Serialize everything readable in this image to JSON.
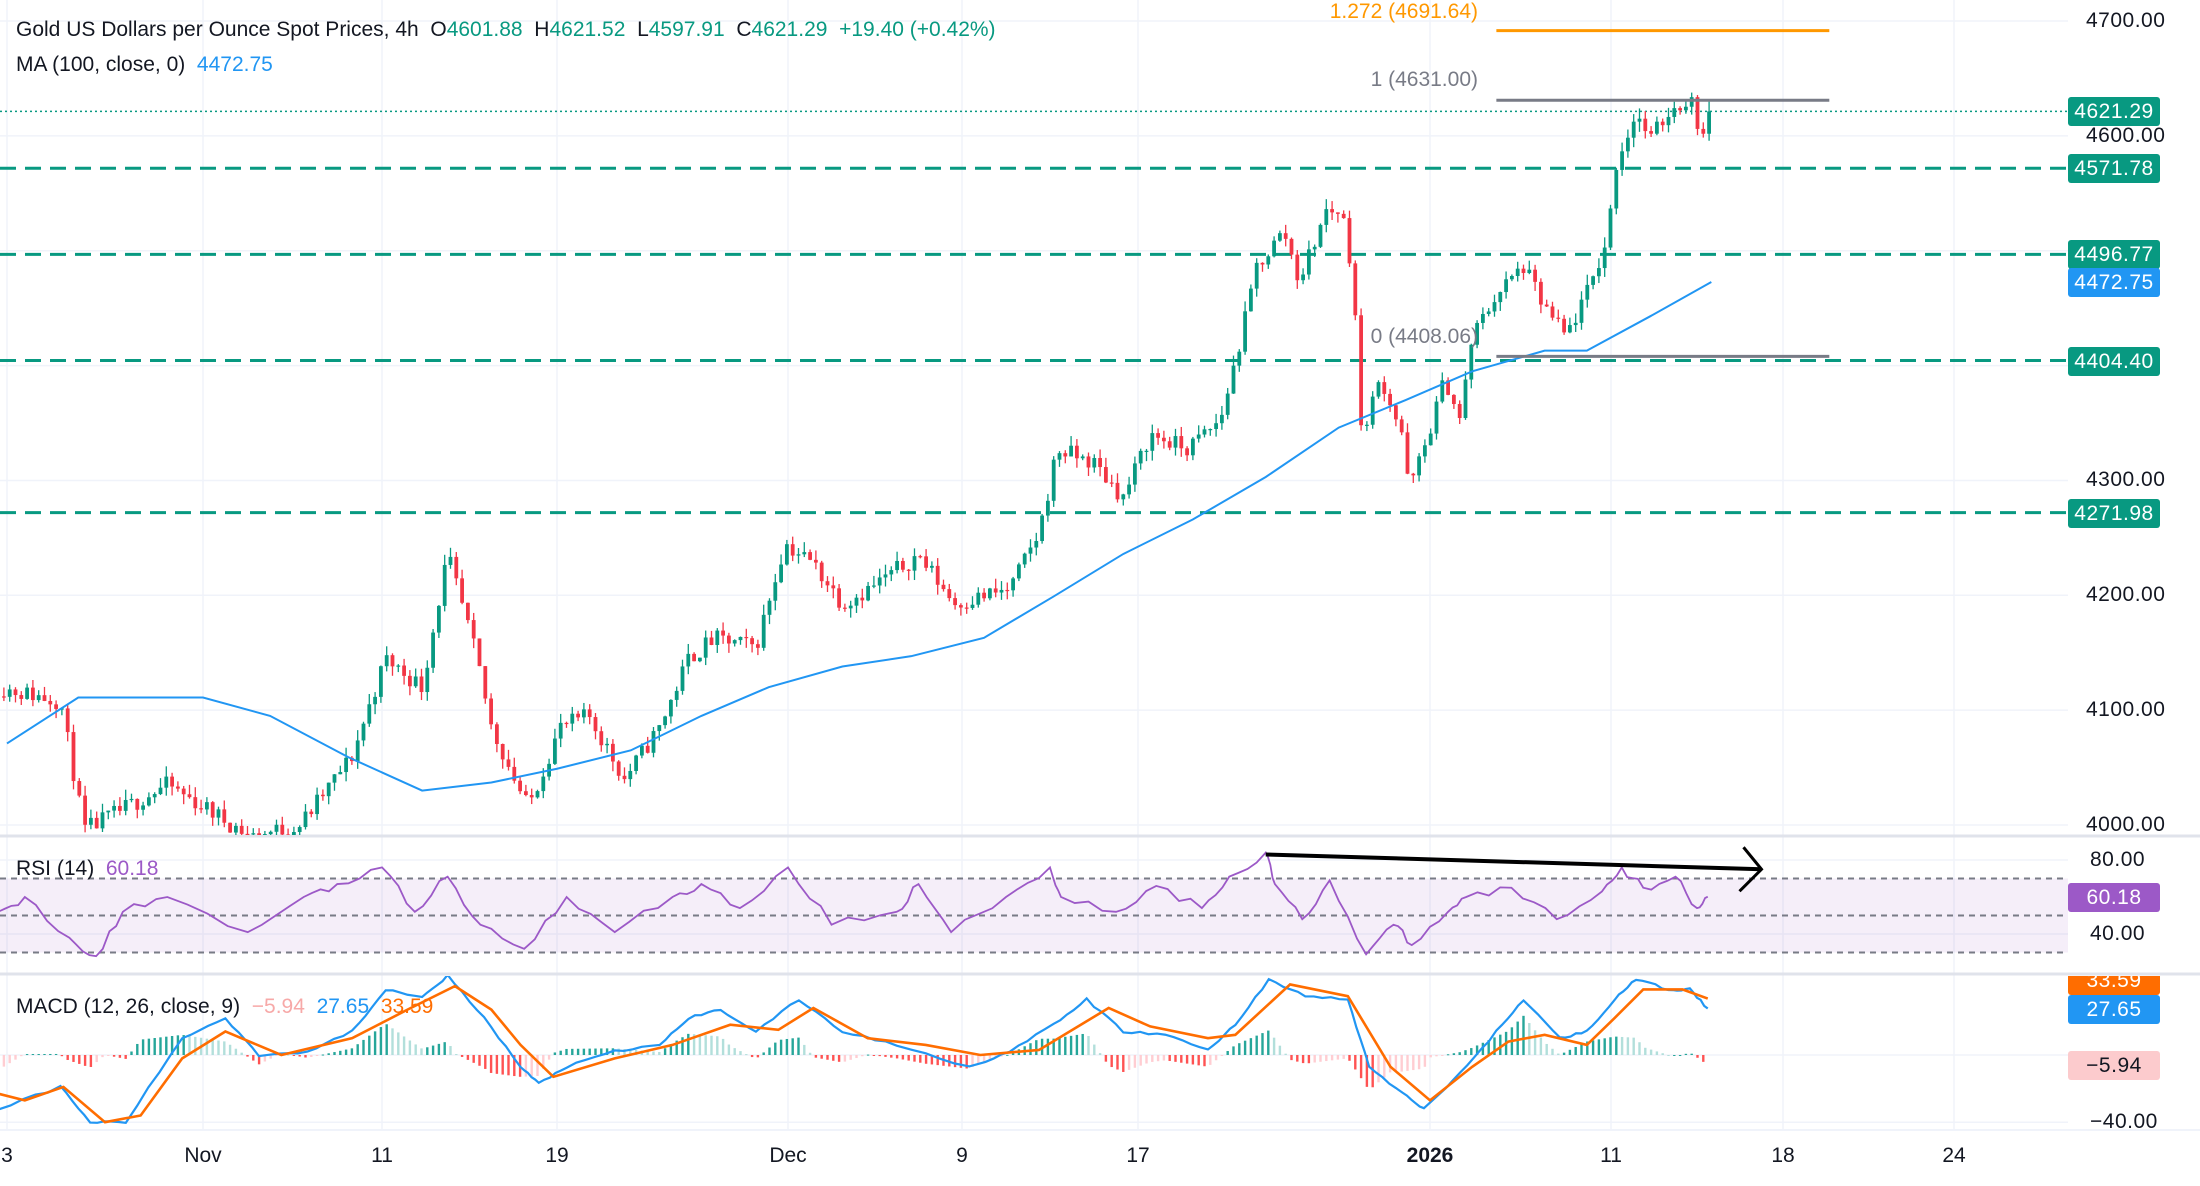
{
  "header": {
    "title": "Gold US Dollars per Ounce Spot Prices, 4h",
    "o_label": "O",
    "open": "4601.88",
    "h_label": "H",
    "high": "4621.52",
    "l_label": "L",
    "low": "4597.91",
    "c_label": "C",
    "close": "4621.29",
    "change": "+19.40 (+0.42%)"
  },
  "ma_legend": {
    "label": "MA (100, close, 0)",
    "value": "4472.75"
  },
  "rsi_legend": {
    "label": "RSI (14)",
    "value": "60.18"
  },
  "macd_legend": {
    "label": "MACD (12, 26, close, 9)",
    "histogram": "−5.94",
    "macd": "27.65",
    "signal": "33.59"
  },
  "fib_labels": {
    "f1272": "1.272 (4691.64)",
    "f1": "1 (4631.00)",
    "f0": "0 (4408.06)"
  },
  "colors": {
    "up": "#089981",
    "down": "#f23645",
    "ma": "#2196f3",
    "rsi": "#9c59c7",
    "macd": "#2196f3",
    "signal": "#ff6d00",
    "fib_ext": "#ff9800",
    "fib": "#787b86",
    "level": "#089981"
  },
  "chart_data": [
    {
      "type": "candlestick",
      "title": "Gold US Dollars per Ounce Spot Prices, 4h",
      "ylim": [
        4000,
        4700
      ],
      "y_ticks": [
        "4700.00",
        "4600.00",
        "4300.00",
        "4200.00",
        "4100.00",
        "4000.00"
      ],
      "x_ticks": [
        {
          "label": "3",
          "date": "2025-10-23"
        },
        {
          "label": "Nov",
          "date": "2025-11-03"
        },
        {
          "label": "11",
          "date": "2025-11-11"
        },
        {
          "label": "19",
          "date": "2025-11-19"
        },
        {
          "label": "Dec",
          "date": "2025-12-01"
        },
        {
          "label": "9",
          "date": "2025-12-09"
        },
        {
          "label": "17",
          "date": "2025-12-17"
        },
        {
          "label": "2026",
          "date": "2026-01-02"
        },
        {
          "label": "11",
          "date": "2026-01-12"
        },
        {
          "label": "18",
          "date": "2026-01-20"
        },
        {
          "label": "24",
          "date": "2026-01-28"
        }
      ],
      "last_price": 4621.29,
      "horizontal_levels": [
        4571.78,
        4496.77,
        4404.4,
        4271.98
      ],
      "axis_labels": [
        {
          "value": 4621.29,
          "text": "4621.29",
          "color": "#089981"
        },
        {
          "value": 4571.78,
          "text": "4571.78",
          "color": "#089981"
        },
        {
          "value": 4496.77,
          "text": "4496.77",
          "color": "#089981"
        },
        {
          "value": 4472.75,
          "text": "4472.75",
          "color": "#2196f3"
        },
        {
          "value": 4404.4,
          "text": "4404.40",
          "color": "#089981"
        },
        {
          "value": 4271.98,
          "text": "4271.98",
          "color": "#089981"
        }
      ],
      "fibonacci": {
        "start": "2026-01-05T16",
        "end": "2026-01-22T04",
        "levels": [
          {
            "ratio": 1.272,
            "price": 4691.64
          },
          {
            "ratio": 1,
            "price": 4631.0
          },
          {
            "ratio": 0,
            "price": 4408.06
          }
        ]
      },
      "price_path": [
        [
          "2025-10-22T12",
          4120
        ],
        [
          "2025-10-26T00",
          4108
        ],
        [
          "2025-10-27T08",
          3995
        ],
        [
          "2025-11-01T00",
          4035
        ],
        [
          "2025-11-05T04",
          3990
        ],
        [
          "2025-11-07T08",
          4000
        ],
        [
          "2025-11-09T16",
          4060
        ],
        [
          "2025-11-11T04",
          4145
        ],
        [
          "2025-11-12T20",
          4120
        ],
        [
          "2025-11-14T00",
          4235
        ],
        [
          "2025-11-15T08",
          4145
        ],
        [
          "2025-11-16T00",
          4085
        ],
        [
          "2025-11-17T16",
          4015
        ],
        [
          "2025-11-19T04",
          4085
        ],
        [
          "2025-11-20T16",
          4095
        ],
        [
          "2025-11-22T12",
          4040
        ],
        [
          "2025-11-24T08",
          4085
        ],
        [
          "2025-11-25T20",
          4145
        ],
        [
          "2025-11-27T04",
          4162
        ],
        [
          "2025-11-29T08",
          4155
        ],
        [
          "2025-11-30T20",
          4245
        ],
        [
          "2025-12-02T04",
          4228
        ],
        [
          "2025-12-03T12",
          4193
        ],
        [
          "2025-12-04T16",
          4205
        ],
        [
          "2025-12-07T00",
          4235
        ],
        [
          "2025-12-08T16",
          4193
        ],
        [
          "2025-12-11T04",
          4205
        ],
        [
          "2025-12-12T12",
          4254
        ],
        [
          "2025-12-13T08",
          4327
        ],
        [
          "2025-12-15T00",
          4315
        ],
        [
          "2025-12-16T08",
          4285
        ],
        [
          "2025-12-17T16",
          4340
        ],
        [
          "2025-12-19T16",
          4327
        ],
        [
          "2025-12-21T12",
          4352
        ],
        [
          "2025-12-22T16",
          4425
        ],
        [
          "2025-12-23T12",
          4486
        ],
        [
          "2025-12-25T00",
          4517
        ],
        [
          "2025-12-25T20",
          4474
        ],
        [
          "2025-12-27T08",
          4535
        ],
        [
          "2025-12-28T04",
          4535
        ],
        [
          "2025-12-28T20",
          4474
        ],
        [
          "2025-12-29T04",
          4340
        ],
        [
          "2025-12-30T08",
          4389
        ],
        [
          "2025-12-31T12",
          4340
        ],
        [
          "2025-12-31T20",
          4291
        ],
        [
          "2026-01-01T16",
          4327
        ],
        [
          "2026-01-02T20",
          4389
        ],
        [
          "2026-01-03T16",
          4352
        ],
        [
          "2026-01-04T08",
          4425
        ],
        [
          "2026-01-05T16",
          4462
        ],
        [
          "2026-01-07T04",
          4486
        ],
        [
          "2026-01-08T08",
          4450
        ],
        [
          "2026-01-09T12",
          4425
        ],
        [
          "2026-01-10T16",
          4462
        ],
        [
          "2026-01-11T20",
          4511
        ],
        [
          "2026-01-12T04",
          4572
        ],
        [
          "2026-01-13T04",
          4621
        ],
        [
          "2026-01-13T20",
          4596
        ],
        [
          "2026-01-14T16",
          4621
        ],
        [
          "2026-01-15T16",
          4633
        ],
        [
          "2026-01-16T08",
          4596
        ],
        [
          "2026-01-16T16",
          4621.29
        ]
      ],
      "ma_path": [
        [
          "2025-10-23T00",
          4071
        ],
        [
          "2025-10-27T00",
          4111
        ],
        [
          "2025-11-03T00",
          4111
        ],
        [
          "2025-11-06T00",
          4095
        ],
        [
          "2025-11-09T12",
          4059
        ],
        [
          "2025-11-12T20",
          4030
        ],
        [
          "2025-11-16T00",
          4037
        ],
        [
          "2025-11-19T00",
          4049
        ],
        [
          "2025-11-22T20",
          4065
        ],
        [
          "2025-11-26T12",
          4095
        ],
        [
          "2025-11-30T00",
          4120
        ],
        [
          "2025-12-03T12",
          4138
        ],
        [
          "2025-12-06T16",
          4147
        ],
        [
          "2025-12-10T00",
          4163
        ],
        [
          "2025-12-13T04",
          4199
        ],
        [
          "2025-12-16T08",
          4236
        ],
        [
          "2025-12-20T00",
          4266
        ],
        [
          "2025-12-24T00",
          4303
        ],
        [
          "2025-12-28T00",
          4346
        ],
        [
          "2025-12-31T16",
          4370
        ],
        [
          "2026-01-04T08",
          4395
        ],
        [
          "2026-01-08T08",
          4413
        ],
        [
          "2026-01-10T16",
          4413
        ],
        [
          "2026-01-13T20",
          4443
        ],
        [
          "2026-01-16T16",
          4472.75
        ]
      ]
    },
    {
      "type": "line",
      "title": "RSI (14)",
      "ylim": [
        20,
        90
      ],
      "y_ticks": [
        "80.00",
        "40.00"
      ],
      "bands": [
        70,
        50,
        30
      ],
      "last_value": 60.18,
      "trendline": {
        "from": [
          "2025-12-24T00",
          83
        ],
        "to": [
          "2026-01-19T00",
          75
        ]
      },
      "values": [
        [
          "2025-10-22T12",
          52
        ],
        [
          "2025-10-24T00",
          60
        ],
        [
          "2025-10-26T12",
          38
        ],
        [
          "2025-10-28T00",
          28
        ],
        [
          "2025-10-29T12",
          52
        ],
        [
          "2025-11-01T00",
          60
        ],
        [
          "2025-11-05T00",
          41
        ],
        [
          "2025-11-07T12",
          60
        ],
        [
          "2025-11-09T00",
          67
        ],
        [
          "2025-11-11T00",
          76
        ],
        [
          "2025-11-12T12",
          52
        ],
        [
          "2025-11-14T00",
          71
        ],
        [
          "2025-11-15T12",
          45
        ],
        [
          "2025-11-17T12",
          32
        ],
        [
          "2025-11-19T12",
          60
        ],
        [
          "2025-11-22T00",
          41
        ],
        [
          "2025-11-25T00",
          60
        ],
        [
          "2025-11-26T12",
          67
        ],
        [
          "2025-11-28T12",
          54
        ],
        [
          "2025-12-01T00",
          76
        ],
        [
          "2025-12-03T00",
          45
        ],
        [
          "2025-12-06T00",
          52
        ],
        [
          "2025-12-07T00",
          67
        ],
        [
          "2025-12-08T12",
          41
        ],
        [
          "2025-12-11T00",
          60
        ],
        [
          "2025-12-13T00",
          76
        ],
        [
          "2025-12-13T12",
          60
        ],
        [
          "2025-12-16T00",
          52
        ],
        [
          "2025-12-18T00",
          66
        ],
        [
          "2025-12-20T12",
          54
        ],
        [
          "2025-12-22T00",
          71
        ],
        [
          "2025-12-24T00",
          84
        ],
        [
          "2025-12-24T12",
          67
        ],
        [
          "2025-12-26T00",
          48
        ],
        [
          "2025-12-27T12",
          69
        ],
        [
          "2025-12-29T12",
          29
        ],
        [
          "2025-12-31T00",
          45
        ],
        [
          "2026-01-01T00",
          34
        ],
        [
          "2026-01-03T00",
          52
        ],
        [
          "2026-01-04T00",
          60
        ],
        [
          "2026-01-06T12",
          65
        ],
        [
          "2026-01-09T00",
          48
        ],
        [
          "2026-01-11T12",
          63
        ],
        [
          "2026-01-12T12",
          76
        ],
        [
          "2026-01-13T12",
          65
        ],
        [
          "2026-01-15T00",
          71
        ],
        [
          "2026-01-16T00",
          54
        ],
        [
          "2026-01-16T12",
          60.18
        ]
      ]
    },
    {
      "type": "line",
      "title": "MACD (12, 26, close, 9)",
      "ylim": [
        -45,
        50
      ],
      "y_ticks": [
        "-40.00"
      ],
      "axis_labels": [
        {
          "value": 33.59,
          "text": "33.59",
          "color": "#ff6d00",
          "text_color": "#ffffff"
        },
        {
          "value": 27.65,
          "text": "27.65",
          "color": "#2196f3",
          "text_color": "#ffffff"
        },
        {
          "value": -5.94,
          "text": "−5.94",
          "color": "#fccbcd",
          "text_color": "#131722"
        }
      ],
      "series": [
        {
          "name": "MACD",
          "values": [
            [
              "2025-10-22T12",
              -32
            ],
            [
              "2025-10-26T00",
              -19
            ],
            [
              "2025-10-27T16",
              -40
            ],
            [
              "2025-10-29T16",
              -40
            ],
            [
              "2025-11-01T20",
              10
            ],
            [
              "2025-11-04T00",
              22
            ],
            [
              "2025-11-05T12",
              0
            ],
            [
              "2025-11-07T16",
              2
            ],
            [
              "2025-11-09T16",
              14
            ],
            [
              "2025-11-11T04",
              39
            ],
            [
              "2025-11-12T20",
              35
            ],
            [
              "2025-11-14T00",
              47
            ],
            [
              "2025-11-15T16",
              22
            ],
            [
              "2025-11-17T08",
              -7
            ],
            [
              "2025-11-18T04",
              -17
            ],
            [
              "2025-11-19T12",
              -7
            ],
            [
              "2025-11-22T00",
              2
            ],
            [
              "2025-11-24T08",
              6
            ],
            [
              "2025-11-25T20",
              22
            ],
            [
              "2025-11-27T12",
              27
            ],
            [
              "2025-11-29T08",
              14
            ],
            [
              "2025-12-01T12",
              33
            ],
            [
              "2025-12-03T12",
              14
            ],
            [
              "2025-12-06T00",
              6
            ],
            [
              "2025-12-09T08",
              -7
            ],
            [
              "2025-12-11T04",
              2
            ],
            [
              "2025-12-13T04",
              18
            ],
            [
              "2025-12-14T16",
              33
            ],
            [
              "2025-12-16T08",
              14
            ],
            [
              "2025-12-18T12",
              12
            ],
            [
              "2025-12-20T20",
              3
            ],
            [
              "2025-12-22T08",
              18
            ],
            [
              "2025-12-24T04",
              45
            ],
            [
              "2025-12-26T04",
              35
            ],
            [
              "2025-12-28T12",
              33
            ],
            [
              "2025-12-29T16",
              -7
            ],
            [
              "2025-12-31T12",
              -23
            ],
            [
              "2026-01-01T16",
              -32
            ],
            [
              "2026-01-03T16",
              -11
            ],
            [
              "2026-01-05T16",
              14
            ],
            [
              "2026-01-07T04",
              33
            ],
            [
              "2026-01-09T04",
              10
            ],
            [
              "2026-01-10T16",
              14
            ],
            [
              "2026-01-12T04",
              33
            ],
            [
              "2026-01-13T04",
              45
            ],
            [
              "2026-01-14T16",
              39
            ],
            [
              "2026-01-15T16",
              39
            ],
            [
              "2026-01-16T12",
              27.65
            ]
          ]
        },
        {
          "name": "Signal",
          "values": [
            [
              "2025-10-22T12",
              -23
            ],
            [
              "2025-10-24T00",
              -27
            ],
            [
              "2025-10-26T04",
              -19
            ],
            [
              "2025-10-28T12",
              -40
            ],
            [
              "2025-10-30T12",
              -36
            ],
            [
              "2025-11-01T20",
              -2
            ],
            [
              "2025-11-04T00",
              14
            ],
            [
              "2025-11-06T12",
              0
            ],
            [
              "2025-11-09T16",
              10
            ],
            [
              "2025-11-12T04",
              27
            ],
            [
              "2025-11-14T08",
              41
            ],
            [
              "2025-11-16T00",
              27
            ],
            [
              "2025-11-17T08",
              6
            ],
            [
              "2025-11-18T20",
              -13
            ],
            [
              "2025-11-22T00",
              -2
            ],
            [
              "2025-11-25T00",
              6
            ],
            [
              "2025-11-28T00",
              18
            ],
            [
              "2025-11-30T12",
              15
            ],
            [
              "2025-12-02T04",
              28
            ],
            [
              "2025-12-04T16",
              10
            ],
            [
              "2025-12-07T08",
              6
            ],
            [
              "2025-12-09T20",
              0
            ],
            [
              "2025-12-12T12",
              3
            ],
            [
              "2025-12-15T16",
              28
            ],
            [
              "2025-12-17T16",
              17
            ],
            [
              "2025-12-20T20",
              10
            ],
            [
              "2025-12-22T08",
              12
            ],
            [
              "2025-12-25T08",
              42
            ],
            [
              "2025-12-28T12",
              35
            ],
            [
              "2025-12-30T20",
              -7
            ],
            [
              "2026-01-02T00",
              -27
            ],
            [
              "2026-01-04T08",
              -7
            ],
            [
              "2026-01-06T08",
              8
            ],
            [
              "2026-01-08T08",
              12
            ],
            [
              "2026-01-10T16",
              6
            ],
            [
              "2026-01-12T04",
              22
            ],
            [
              "2026-01-13T12",
              39
            ],
            [
              "2026-01-15T08",
              39
            ],
            [
              "2026-01-16T12",
              33.59
            ]
          ]
        },
        {
          "name": "Histogram",
          "last_value": -5.94
        }
      ]
    }
  ]
}
